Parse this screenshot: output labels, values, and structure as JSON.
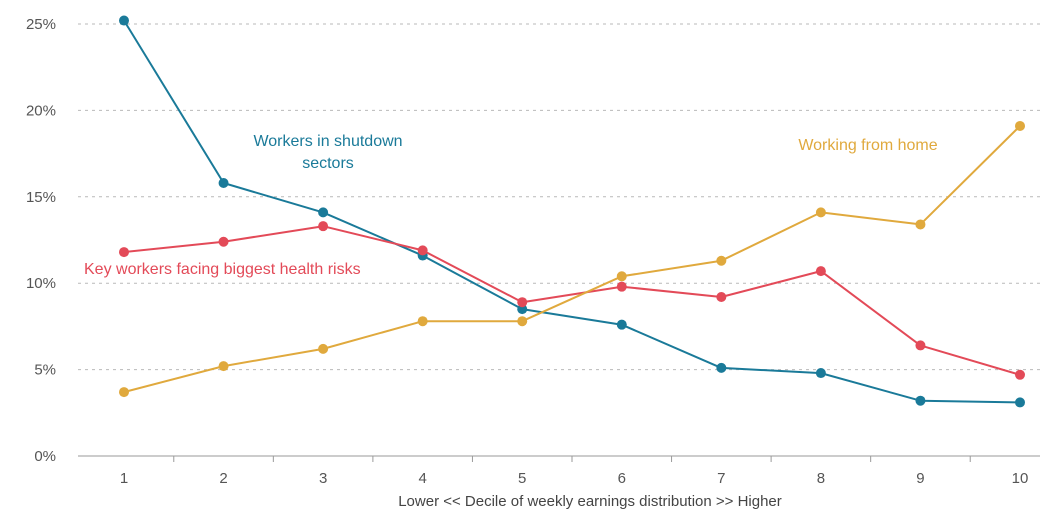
{
  "chart_data": {
    "type": "line",
    "title": "",
    "xlabel": "Lower << Decile of weekly earnings distribution >> Higher",
    "ylabel": "",
    "x": [
      1,
      2,
      3,
      4,
      5,
      6,
      7,
      8,
      9,
      10
    ],
    "x_tick_labels": [
      "1",
      "2",
      "3",
      "4",
      "5",
      "6",
      "7",
      "8",
      "9",
      "10"
    ],
    "ylim": [
      0,
      25
    ],
    "y_ticks": [
      0,
      5,
      10,
      15,
      20,
      25
    ],
    "y_tick_labels": [
      "0%",
      "5%",
      "10%",
      "15%",
      "20%",
      "25%"
    ],
    "grid": "horizontal-dashed",
    "legend": "inline labels",
    "series": [
      {
        "name": "Workers in shutdown sectors",
        "label_lines": [
          "Workers in shutdown",
          "sectors"
        ],
        "color": "#1a7a99",
        "values": [
          25.2,
          15.8,
          14.1,
          11.6,
          8.5,
          7.6,
          5.1,
          4.8,
          3.2,
          3.1
        ]
      },
      {
        "name": "Key workers facing biggest health risks",
        "label_lines": [
          "Key workers facing biggest health risks"
        ],
        "color": "#e34a58",
        "values": [
          11.8,
          12.4,
          13.3,
          11.9,
          8.9,
          9.8,
          9.2,
          10.7,
          6.4,
          4.7
        ]
      },
      {
        "name": "Working from home",
        "label_lines": [
          "Working from home"
        ],
        "color": "#e0a93d",
        "values": [
          3.7,
          5.2,
          6.2,
          7.8,
          7.8,
          10.4,
          11.3,
          14.1,
          13.4,
          19.1
        ]
      }
    ]
  }
}
